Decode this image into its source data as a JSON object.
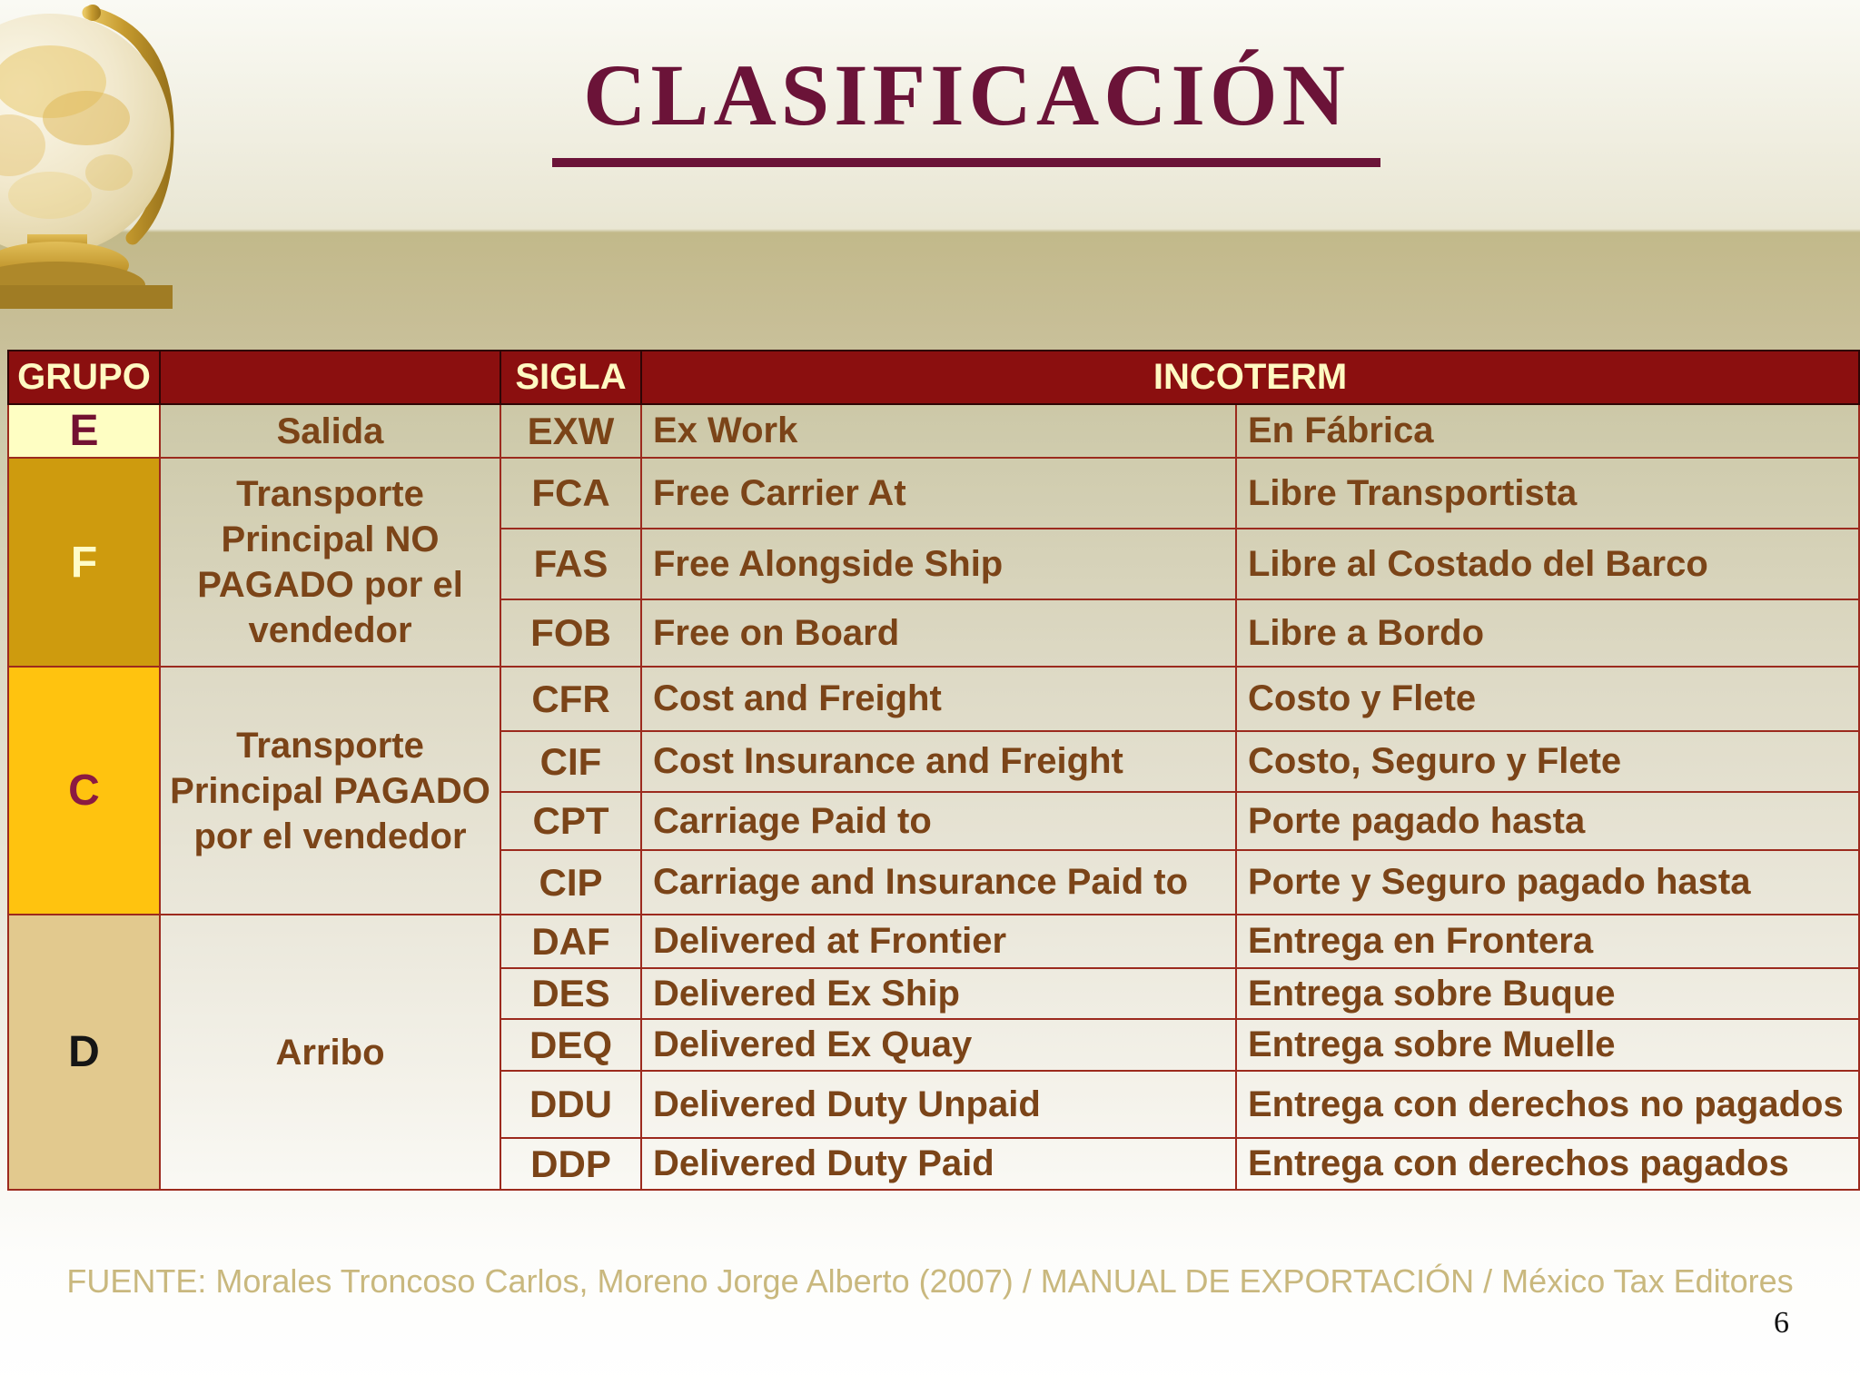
{
  "title": "CLASIFICACIÓN",
  "page_number": "6",
  "footer": "FUENTE: Morales Troncoso Carlos, Moreno Jorge Alberto (2007) / MANUAL DE EXPORTACIÓN / México Tax Editores",
  "colors": {
    "title_color": "#6B1338",
    "header_bg": "#8B0F0F",
    "header_text": "#FFF9C2",
    "border_color": "#9C2A1E",
    "body_text": "#7B4418",
    "footer_text": "#C9B87E",
    "band": "#C2B98A"
  },
  "table": {
    "headers": {
      "grupo": "GRUPO",
      "description": "",
      "sigla": "SIGLA",
      "incoterm": "INCOTERM"
    },
    "groups": [
      {
        "letter": "E",
        "letter_color": "#731131",
        "bg": "#FEFEC3",
        "description": "Salida",
        "rows": [
          {
            "sigla": "EXW",
            "english": "Ex Work",
            "spanish": "En Fábrica"
          }
        ]
      },
      {
        "letter": "F",
        "letter_color": "#FFFCC8",
        "bg": "#CE9B0E",
        "description": "Transporte\nPrincipal NO\nPAGADO por el\nvendedor",
        "rows": [
          {
            "sigla": "FCA",
            "english": "Free Carrier At",
            "spanish": "Libre Transportista"
          },
          {
            "sigla": "FAS",
            "english": "Free Alongside Ship",
            "spanish": "Libre al Costado del Barco"
          },
          {
            "sigla": "FOB",
            "english": "Free on Board",
            "spanish": "Libre a Bordo"
          }
        ]
      },
      {
        "letter": "C",
        "letter_color": "#8B1A42",
        "bg": "#FFC30F",
        "description": "Transporte\nPrincipal PAGADO\npor el vendedor",
        "rows": [
          {
            "sigla": "CFR",
            "english": "Cost and Freight",
            "spanish": "Costo y Flete"
          },
          {
            "sigla": "CIF",
            "english": "Cost Insurance and Freight",
            "spanish": "Costo, Seguro y Flete"
          },
          {
            "sigla": "CPT",
            "english": "Carriage Paid to",
            "spanish": "Porte pagado hasta"
          },
          {
            "sigla": "CIP",
            "english": "Carriage and Insurance Paid to",
            "spanish": "Porte y Seguro pagado hasta"
          }
        ]
      },
      {
        "letter": "D",
        "letter_color": "#151515",
        "bg": "#E2C98E",
        "description": "Arribo",
        "rows": [
          {
            "sigla": "DAF",
            "english": "Delivered at Frontier",
            "spanish": "Entrega en Frontera"
          },
          {
            "sigla": "DES",
            "english": "Delivered Ex Ship",
            "spanish": "Entrega sobre Buque"
          },
          {
            "sigla": "DEQ",
            "english": "Delivered Ex Quay",
            "spanish": "Entrega sobre Muelle"
          },
          {
            "sigla": "DDU",
            "english": "Delivered Duty Unpaid",
            "spanish": "Entrega con derechos no pagados"
          },
          {
            "sigla": "DDP",
            "english": "Delivered Duty Paid",
            "spanish": "Entrega con derechos pagados"
          }
        ]
      }
    ]
  }
}
